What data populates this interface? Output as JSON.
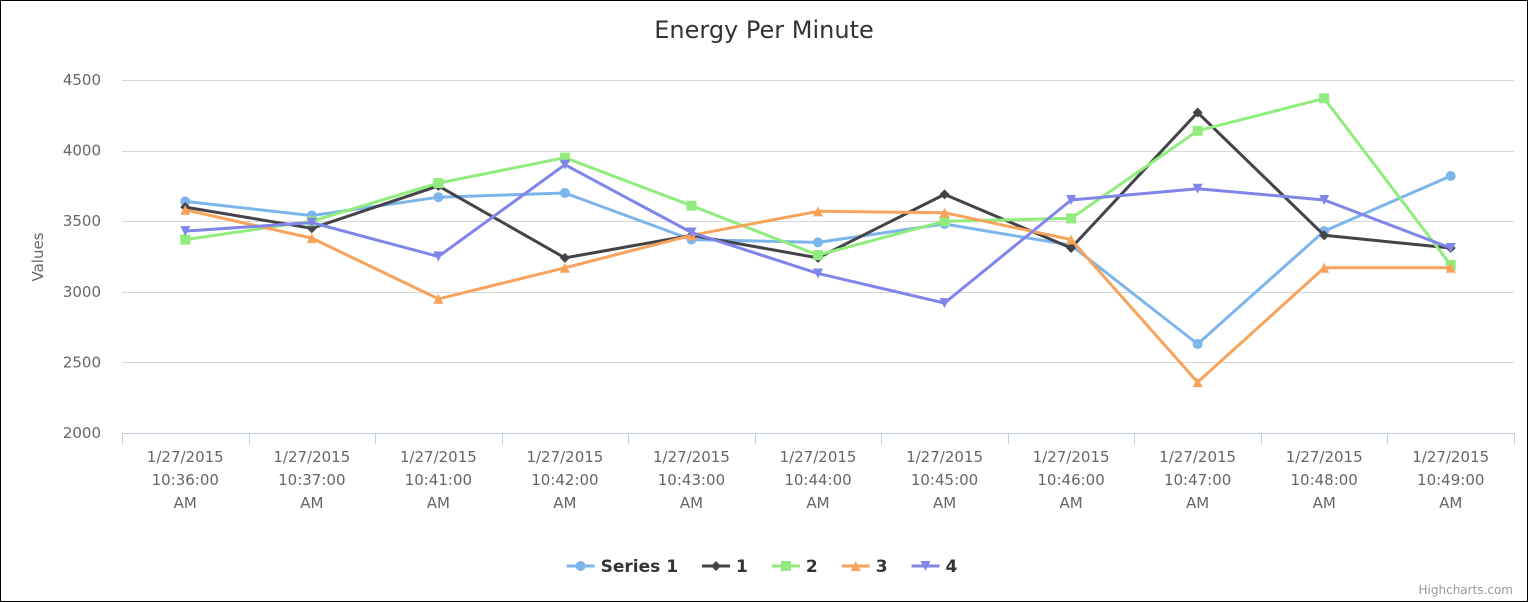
{
  "chart_data": {
    "type": "line",
    "title": "Energy Per Minute",
    "ylabel": "Values",
    "xlabel": "",
    "ylim": [
      2000,
      4500
    ],
    "y_ticks": [
      2000,
      2500,
      3000,
      3500,
      4000,
      4500
    ],
    "grid": true,
    "legend_position": "bottom-center",
    "categories": [
      [
        "1/27/2015",
        "10:36:00",
        "AM"
      ],
      [
        "1/27/2015",
        "10:37:00",
        "AM"
      ],
      [
        "1/27/2015",
        "10:41:00",
        "AM"
      ],
      [
        "1/27/2015",
        "10:42:00",
        "AM"
      ],
      [
        "1/27/2015",
        "10:43:00",
        "AM"
      ],
      [
        "1/27/2015",
        "10:44:00",
        "AM"
      ],
      [
        "1/27/2015",
        "10:45:00",
        "AM"
      ],
      [
        "1/27/2015",
        "10:46:00",
        "AM"
      ],
      [
        "1/27/2015",
        "10:47:00",
        "AM"
      ],
      [
        "1/27/2015",
        "10:48:00",
        "AM"
      ],
      [
        "1/27/2015",
        "10:49:00",
        "AM"
      ]
    ],
    "series": [
      {
        "name": "Series 1",
        "color": "#7cb5ec",
        "marker": "circle",
        "values": [
          3640,
          3540,
          3670,
          3700,
          3370,
          3350,
          3480,
          3330,
          2630,
          3430,
          3820
        ]
      },
      {
        "name": "1",
        "color": "#434348",
        "marker": "diamond",
        "values": [
          3600,
          3450,
          3750,
          3240,
          3400,
          3240,
          3690,
          3310,
          4270,
          3400,
          3310
        ]
      },
      {
        "name": "2",
        "color": "#90ed7d",
        "marker": "square",
        "values": [
          3370,
          3500,
          3770,
          3950,
          3610,
          3260,
          3500,
          3520,
          4140,
          4370,
          3190
        ]
      },
      {
        "name": "3",
        "color": "#f7a35c",
        "marker": "triangle",
        "values": [
          3580,
          3380,
          2950,
          3170,
          3400,
          3570,
          3560,
          3370,
          2360,
          3170,
          3170
        ]
      },
      {
        "name": "4",
        "color": "#8085e9",
        "marker": "triangle-down",
        "values": [
          3430,
          3490,
          3250,
          3900,
          3420,
          3130,
          2920,
          3650,
          3730,
          3650,
          3310
        ]
      }
    ]
  },
  "credits": "Highcharts.com"
}
